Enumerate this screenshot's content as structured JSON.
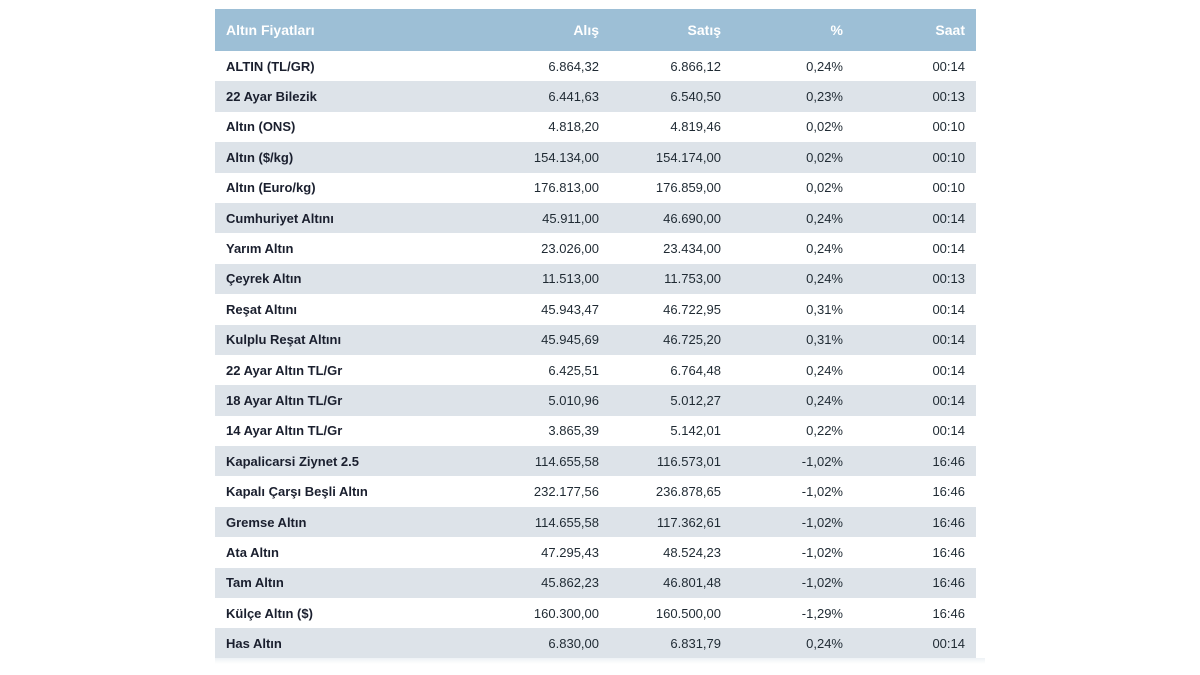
{
  "table": {
    "headers": {
      "name": "Altın Fiyatları",
      "buy": "Alış",
      "sell": "Satış",
      "percent": "%",
      "time": "Saat"
    },
    "rows": [
      {
        "name": "ALTIN (TL/GR)",
        "buy": "6.864,32",
        "sell": "6.866,12",
        "percent": "0,24%",
        "time": "00:14"
      },
      {
        "name": "22 Ayar Bilezik",
        "buy": "6.441,63",
        "sell": "6.540,50",
        "percent": "0,23%",
        "time": "00:13"
      },
      {
        "name": "Altın (ONS)",
        "buy": "4.818,20",
        "sell": "4.819,46",
        "percent": "0,02%",
        "time": "00:10"
      },
      {
        "name": "Altın ($/kg)",
        "buy": "154.134,00",
        "sell": "154.174,00",
        "percent": "0,02%",
        "time": "00:10"
      },
      {
        "name": "Altın (Euro/kg)",
        "buy": "176.813,00",
        "sell": "176.859,00",
        "percent": "0,02%",
        "time": "00:10"
      },
      {
        "name": "Cumhuriyet Altını",
        "buy": "45.911,00",
        "sell": "46.690,00",
        "percent": "0,24%",
        "time": "00:14"
      },
      {
        "name": "Yarım Altın",
        "buy": "23.026,00",
        "sell": "23.434,00",
        "percent": "0,24%",
        "time": "00:14"
      },
      {
        "name": "Çeyrek Altın",
        "buy": "11.513,00",
        "sell": "11.753,00",
        "percent": "0,24%",
        "time": "00:13"
      },
      {
        "name": "Reşat Altını",
        "buy": "45.943,47",
        "sell": "46.722,95",
        "percent": "0,31%",
        "time": "00:14"
      },
      {
        "name": "Kulplu Reşat Altını",
        "buy": "45.945,69",
        "sell": "46.725,20",
        "percent": "0,31%",
        "time": "00:14"
      },
      {
        "name": "22 Ayar Altın TL/Gr",
        "buy": "6.425,51",
        "sell": "6.764,48",
        "percent": "0,24%",
        "time": "00:14"
      },
      {
        "name": "18 Ayar Altın TL/Gr",
        "buy": "5.010,96",
        "sell": "5.012,27",
        "percent": "0,24%",
        "time": "00:14"
      },
      {
        "name": "14 Ayar Altın TL/Gr",
        "buy": "3.865,39",
        "sell": "5.142,01",
        "percent": "0,22%",
        "time": "00:14"
      },
      {
        "name": "Kapalicarsi Ziynet 2.5",
        "buy": "114.655,58",
        "sell": "116.573,01",
        "percent": "-1,02%",
        "time": "16:46"
      },
      {
        "name": "Kapalı Çarşı Beşli Altın",
        "buy": "232.177,56",
        "sell": "236.878,65",
        "percent": "-1,02%",
        "time": "16:46"
      },
      {
        "name": "Gremse Altın",
        "buy": "114.655,58",
        "sell": "117.362,61",
        "percent": "-1,02%",
        "time": "16:46"
      },
      {
        "name": "Ata Altın",
        "buy": "47.295,43",
        "sell": "48.524,23",
        "percent": "-1,02%",
        "time": "16:46"
      },
      {
        "name": "Tam Altın",
        "buy": "45.862,23",
        "sell": "46.801,48",
        "percent": "-1,02%",
        "time": "16:46"
      },
      {
        "name": "Külçe Altın ($)",
        "buy": "160.300,00",
        "sell": "160.500,00",
        "percent": "-1,29%",
        "time": "16:46"
      },
      {
        "name": "Has Altın",
        "buy": "6.830,00",
        "sell": "6.831,79",
        "percent": "0,24%",
        "time": "00:14"
      }
    ]
  },
  "colors": {
    "header_bg": "#9dbfd6",
    "row_alt_bg": "#dde3e9"
  }
}
